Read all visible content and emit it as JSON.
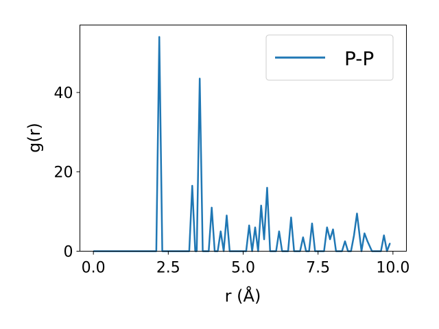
{
  "chart_data": {
    "type": "line",
    "xlabel": "r (Å)",
    "ylabel": "g(r)",
    "xlim": [
      -0.45,
      10.45
    ],
    "ylim": [
      0,
      57
    ],
    "xticks": [
      0.0,
      2.5,
      5.0,
      7.5,
      10.0
    ],
    "xtick_labels": [
      "0.0",
      "2.5",
      "5.0",
      "7.5",
      "10.0"
    ],
    "yticks": [
      0,
      20,
      40
    ],
    "ytick_labels": [
      "0",
      "20",
      "40"
    ],
    "grid": false,
    "legend_position": "top-right",
    "series": [
      {
        "name": "P-P",
        "color": "#1f77b4",
        "x": [
          0.0,
          2.1,
          2.2,
          2.3,
          3.2,
          3.3,
          3.4,
          3.45,
          3.55,
          3.65,
          3.85,
          3.95,
          4.05,
          4.15,
          4.25,
          4.35,
          4.45,
          4.55,
          4.65,
          5.1,
          5.2,
          5.3,
          5.4,
          5.5,
          5.6,
          5.7,
          5.8,
          5.9,
          6.1,
          6.2,
          6.3,
          6.5,
          6.6,
          6.7,
          6.9,
          7.0,
          7.1,
          7.2,
          7.3,
          7.4,
          7.7,
          7.8,
          7.9,
          8.0,
          8.1,
          8.3,
          8.4,
          8.5,
          8.6,
          8.7,
          8.8,
          8.95,
          9.05,
          9.15,
          9.3,
          9.6,
          9.7,
          9.8,
          9.9
        ],
        "y": [
          0,
          0,
          54,
          0,
          0,
          16.5,
          0,
          0,
          43.5,
          0,
          0,
          11,
          0,
          0,
          5,
          0,
          9,
          0,
          0,
          0,
          6.5,
          0,
          6,
          0,
          11.5,
          3,
          16,
          0,
          0,
          5,
          0,
          0,
          8.5,
          0,
          0,
          3.5,
          0,
          0,
          7,
          0,
          0,
          6,
          3,
          5.5,
          0,
          0,
          2.5,
          0,
          0,
          4,
          9.5,
          0,
          4.5,
          2.5,
          0,
          0,
          4,
          0,
          2
        ]
      }
    ]
  }
}
